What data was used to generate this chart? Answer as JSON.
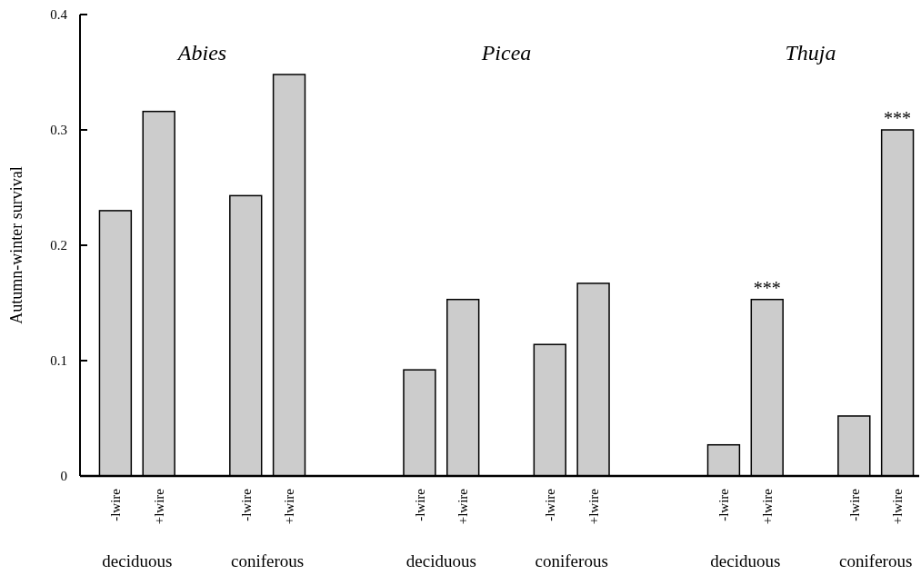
{
  "chart_data": {
    "type": "bar",
    "ylabel": "Autumn-winter survival",
    "categories": [
      "-lwire",
      "+lwire",
      null,
      "-lwire",
      "+lwire",
      null,
      null,
      "-lwire",
      "+lwire",
      null,
      "-lwire",
      "+lwire",
      null,
      null,
      "-lwire",
      "+lwire",
      null,
      "-lwire",
      "+lwire"
    ],
    "values": [
      0.23,
      0.316,
      null,
      0.243,
      0.348,
      null,
      null,
      0.092,
      0.153,
      null,
      0.114,
      0.167,
      null,
      null,
      0.027,
      0.153,
      null,
      0.052,
      0.3
    ],
    "value_labels": [
      null,
      null,
      null,
      null,
      null,
      null,
      null,
      null,
      null,
      null,
      null,
      null,
      null,
      null,
      null,
      "***",
      null,
      null,
      "***"
    ],
    "color": "#cccccc",
    "ylim": [
      0,
      0.4
    ],
    "yticks": [
      0,
      0.1,
      0.2,
      0.3,
      0.4
    ],
    "grid": false,
    "annotations": [
      "Abies",
      "Picea",
      "Thuja",
      "deciduous",
      "coniferous",
      "deciduous",
      "coniferous",
      "deciduous",
      "coniferous"
    ]
  }
}
